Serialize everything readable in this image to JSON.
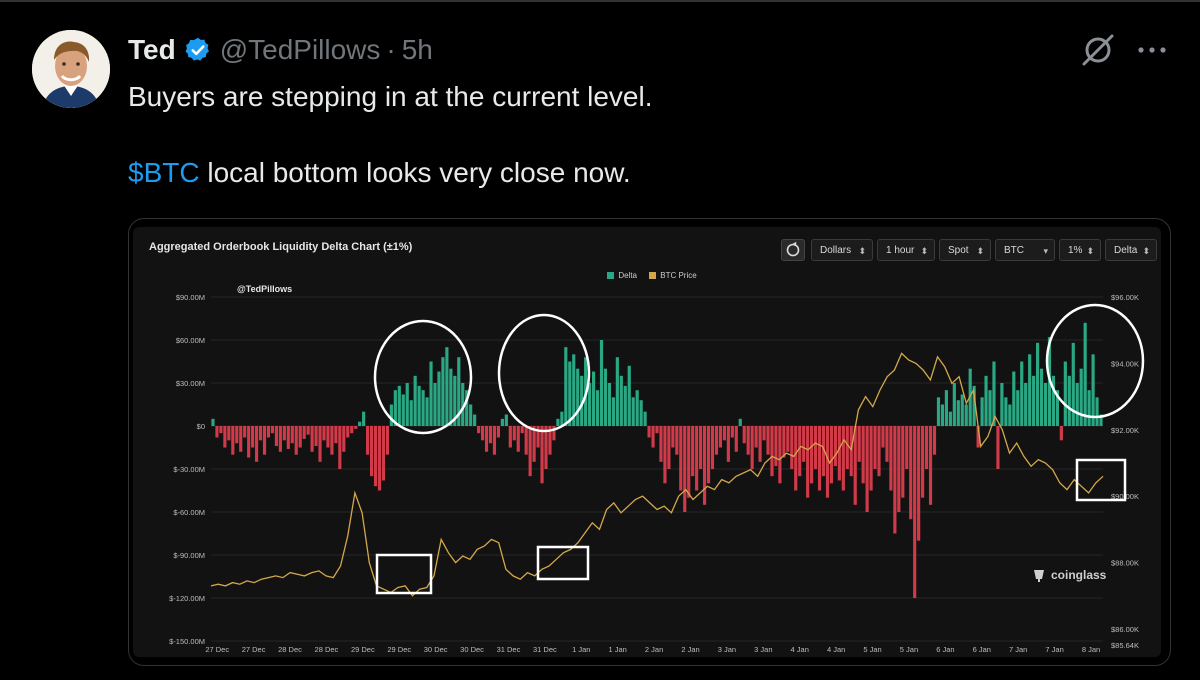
{
  "tweet": {
    "author_name": "Ted",
    "handle": "@TedPillows",
    "separator": "·",
    "time": "5h",
    "text_line1": "Buyers are stepping in at the current level.",
    "cashtag": "$BTC",
    "text_line2_rest": " local bottom looks very close now."
  },
  "icons": {
    "verified": "verified-badge-icon",
    "grok": "grok-icon",
    "more": "more-icon"
  },
  "colors": {
    "accent": "#1d9bf0",
    "delta_positive": "#2aa884",
    "delta_negative": "#d13a48",
    "btc_price": "#d4a84a"
  },
  "chart_controls": {
    "dollars": "Dollars",
    "interval": "1 hour",
    "market": "Spot",
    "coin": "BTC",
    "range": "1%",
    "metric": "Delta"
  },
  "chart_data": {
    "type": "bar",
    "title": "Aggregated Orderbook Liquidity Delta Chart (±1%)",
    "watermark": "@TedPillows",
    "logo": "coinglass",
    "legend": [
      "Delta",
      "BTC Price"
    ],
    "legend_position": "top-center",
    "left_axis_ticks": [
      "$90.00M",
      "$60.00M",
      "$30.00M",
      "$0",
      "$-30.00M",
      "$-60.00M",
      "$-90.00M",
      "$-120.00M",
      "$-150.00M"
    ],
    "right_axis_ticks": [
      "$96.00K",
      "$94.00K",
      "$92.00K",
      "$90.00K",
      "$88.00K",
      "$86.00K",
      "$85.64K"
    ],
    "x_ticks": [
      "27 Dec",
      "27 Dec",
      "28 Dec",
      "28 Dec",
      "29 Dec",
      "29 Dec",
      "30 Dec",
      "30 Dec",
      "31 Dec",
      "31 Dec",
      "1 Jan",
      "1 Jan",
      "2 Jan",
      "2 Jan",
      "3 Jan",
      "3 Jan",
      "4 Jan",
      "4 Jan",
      "5 Jan",
      "5 Jan",
      "6 Jan",
      "6 Jan",
      "7 Jan",
      "7 Jan",
      "8 Jan"
    ],
    "left_ylim": [
      -150,
      90
    ],
    "right_ylim": [
      85.64,
      96
    ],
    "series": [
      {
        "name": "Delta",
        "unit": "$M",
        "values": [
          5,
          -8,
          -5,
          -15,
          -10,
          -20,
          -12,
          -18,
          -8,
          -22,
          -15,
          -25,
          -10,
          -20,
          -8,
          -5,
          -14,
          -18,
          -10,
          -16,
          -12,
          -20,
          -15,
          -9,
          -6,
          -18,
          -14,
          -25,
          -10,
          -15,
          -20,
          -12,
          -30,
          -18,
          -8,
          -5,
          -2,
          3,
          10,
          -20,
          -35,
          -42,
          -45,
          -38,
          -20,
          15,
          25,
          28,
          22,
          30,
          18,
          35,
          28,
          25,
          20,
          45,
          30,
          38,
          48,
          55,
          40,
          35,
          48,
          30,
          25,
          15,
          8,
          -5,
          -10,
          -18,
          -12,
          -20,
          -8,
          5,
          8,
          -15,
          -10,
          -18,
          -5,
          -20,
          -35,
          -25,
          -15,
          -40,
          -30,
          -20,
          -10,
          5,
          10,
          55,
          45,
          50,
          40,
          35,
          48,
          30,
          38,
          25,
          60,
          40,
          30,
          20,
          48,
          35,
          28,
          42,
          20,
          25,
          18,
          10,
          -8,
          -15,
          -5,
          -25,
          -40,
          -30,
          -15,
          -20,
          -45,
          -60,
          -50,
          -35,
          -45,
          -30,
          -55,
          -40,
          -30,
          -20,
          -15,
          -10,
          -25,
          -8,
          -18,
          5,
          -12,
          -20,
          -30,
          -15,
          -25,
          -10,
          -20,
          -35,
          -28,
          -40,
          -22,
          -18,
          -30,
          -45,
          -35,
          -25,
          -50,
          -40,
          -30,
          -45,
          -35,
          -50,
          -40,
          -28,
          -38,
          -45,
          -30,
          -35,
          -55,
          -25,
          -40,
          -60,
          -45,
          -30,
          -35,
          -15,
          -25,
          -45,
          -75,
          -60,
          -50,
          -30,
          -65,
          -120,
          -80,
          -50,
          -30,
          -55,
          -20,
          20,
          15,
          25,
          10,
          30,
          18,
          22,
          15,
          40,
          28,
          -15,
          20,
          35,
          25,
          45,
          -30,
          30,
          20,
          15,
          38,
          25,
          45,
          30,
          50,
          35,
          58,
          40,
          30,
          62,
          35,
          25,
          -10,
          45,
          35,
          58,
          30,
          40,
          72,
          25,
          50,
          20,
          8
        ],
        "color": "#2aa884 / #d13a48"
      },
      {
        "name": "BTC Price",
        "unit": "$K",
        "values": [
          87.3,
          87.35,
          87.3,
          87.4,
          87.35,
          87.45,
          87.4,
          87.5,
          87.55,
          87.6,
          87.55,
          87.7,
          87.65,
          87.6,
          87.7,
          87.75,
          87.6,
          87.55,
          87.9,
          88.8,
          90.1,
          89.5,
          88.0,
          87.3,
          87.2,
          87.1,
          87.25,
          87.3,
          87.0,
          87.2,
          87.25,
          87.6,
          88.7,
          88.3,
          88.0,
          88.2,
          88.1,
          88.4,
          88.5,
          88.7,
          88.6,
          87.8,
          87.6,
          87.5,
          87.7,
          87.6,
          87.8,
          87.9,
          88.1,
          88.3,
          88.4,
          88.6,
          88.9,
          89.2,
          89.0,
          89.6,
          89.8,
          89.5,
          89.7,
          89.9,
          90.0,
          89.8,
          89.6,
          89.7,
          89.5,
          90.0,
          90.2,
          89.9,
          90.1,
          90.3,
          90.2,
          90.5,
          90.4,
          90.6,
          90.7,
          90.8,
          90.6,
          91.0,
          91.2,
          91.1,
          91.3,
          91.2,
          91.5,
          91.4,
          91.6,
          91.5,
          91.0,
          91.3,
          91.7,
          91.4,
          92.6,
          93.0,
          92.7,
          93.2,
          93.6,
          93.8,
          94.3,
          94.1,
          94.0,
          93.8,
          93.5,
          94.2,
          93.9,
          93.4,
          93.6,
          92.8,
          93.2,
          91.5,
          91.8,
          92.4,
          92.0,
          91.3,
          91.6,
          91.2,
          90.9,
          91.1,
          91.0,
          90.8,
          90.4,
          90.2,
          90.5,
          90.3,
          90.1,
          90.4,
          90.6
        ]
      }
    ]
  }
}
